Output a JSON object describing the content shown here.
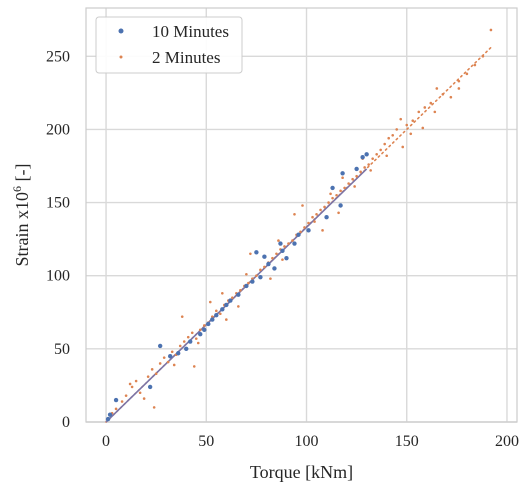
{
  "chart_data": {
    "type": "scatter",
    "xlabel": "Torque [kNm]",
    "ylabel_main": "Strain x10",
    "ylabel_sup": "6",
    "ylabel_tail": " [-]",
    "xlim": [
      -10,
      205
    ],
    "ylim": [
      0,
      283
    ],
    "x_ticks": [
      0,
      50,
      100,
      150,
      200
    ],
    "y_ticks": [
      0,
      50,
      100,
      150,
      200,
      250
    ],
    "x_tick_labels": [
      "0",
      "50",
      "100",
      "150",
      "200"
    ],
    "y_tick_labels": [
      "0",
      "50",
      "100",
      "150",
      "200",
      "250"
    ],
    "grid": true,
    "legend_position": "top-left",
    "series": [
      {
        "name": "10 Minutes",
        "color": "#4C72B0",
        "marker": "dot",
        "points": [
          [
            1,
            2
          ],
          [
            2,
            5
          ],
          [
            5,
            15
          ],
          [
            22,
            24
          ],
          [
            27,
            52
          ],
          [
            32,
            45
          ],
          [
            36,
            47
          ],
          [
            40,
            50
          ],
          [
            42,
            55
          ],
          [
            47,
            60
          ],
          [
            49,
            63
          ],
          [
            51,
            67
          ],
          [
            53,
            70
          ],
          [
            55,
            73
          ],
          [
            58,
            77
          ],
          [
            60,
            80
          ],
          [
            62,
            83
          ],
          [
            66,
            87
          ],
          [
            70,
            93
          ],
          [
            73,
            96
          ],
          [
            75,
            116
          ],
          [
            77,
            99
          ],
          [
            79,
            113
          ],
          [
            81,
            108
          ],
          [
            84,
            105
          ],
          [
            87,
            122
          ],
          [
            88,
            117
          ],
          [
            90,
            112
          ],
          [
            94,
            122
          ],
          [
            96,
            128
          ],
          [
            101,
            131
          ],
          [
            110,
            140
          ],
          [
            113,
            160
          ],
          [
            117,
            148
          ],
          [
            118,
            170
          ],
          [
            125,
            173
          ],
          [
            128,
            181
          ],
          [
            130,
            183
          ]
        ],
        "fit_line": [
          [
            0,
            0
          ],
          [
            130,
            173
          ]
        ]
      },
      {
        "name": "2 Minutes",
        "color": "#DD8452",
        "marker": "dot",
        "points": [
          [
            1,
            2
          ],
          [
            3,
            6
          ],
          [
            5,
            9
          ],
          [
            8,
            14
          ],
          [
            10,
            18
          ],
          [
            13,
            24
          ],
          [
            15,
            28
          ],
          [
            17,
            20
          ],
          [
            19,
            16
          ],
          [
            21,
            31
          ],
          [
            23,
            36
          ],
          [
            25,
            33
          ],
          [
            27,
            40
          ],
          [
            29,
            44
          ],
          [
            31,
            41
          ],
          [
            33,
            48
          ],
          [
            35,
            46
          ],
          [
            37,
            52
          ],
          [
            39,
            55
          ],
          [
            41,
            58
          ],
          [
            43,
            61
          ],
          [
            45,
            57
          ],
          [
            47,
            63
          ],
          [
            49,
            66
          ],
          [
            51,
            68
          ],
          [
            53,
            72
          ],
          [
            55,
            76
          ],
          [
            57,
            74
          ],
          [
            59,
            80
          ],
          [
            61,
            83
          ],
          [
            63,
            85
          ],
          [
            65,
            88
          ],
          [
            67,
            90
          ],
          [
            69,
            93
          ],
          [
            71,
            95
          ],
          [
            73,
            98
          ],
          [
            75,
            100
          ],
          [
            77,
            104
          ],
          [
            79,
            106
          ],
          [
            81,
            109
          ],
          [
            83,
            112
          ],
          [
            85,
            115
          ],
          [
            87,
            118
          ],
          [
            89,
            120
          ],
          [
            91,
            122
          ],
          [
            93,
            124
          ],
          [
            95,
            128
          ],
          [
            97,
            130
          ],
          [
            99,
            133
          ],
          [
            101,
            136
          ],
          [
            103,
            140
          ],
          [
            105,
            142
          ],
          [
            107,
            145
          ],
          [
            109,
            147
          ],
          [
            111,
            150
          ],
          [
            113,
            153
          ],
          [
            115,
            155
          ],
          [
            117,
            158
          ],
          [
            119,
            160
          ],
          [
            121,
            163
          ],
          [
            123,
            166
          ],
          [
            125,
            168
          ],
          [
            127,
            171
          ],
          [
            129,
            174
          ],
          [
            131,
            176
          ],
          [
            133,
            180
          ],
          [
            135,
            183
          ],
          [
            137,
            186
          ],
          [
            139,
            190
          ],
          [
            141,
            194
          ],
          [
            143,
            196
          ],
          [
            145,
            200
          ],
          [
            147,
            207
          ],
          [
            150,
            203
          ],
          [
            153,
            206
          ],
          [
            156,
            212
          ],
          [
            159,
            215
          ],
          [
            162,
            218
          ],
          [
            165,
            228
          ],
          [
            168,
            224
          ],
          [
            172,
            222
          ],
          [
            176,
            233
          ],
          [
            180,
            238
          ],
          [
            184,
            244
          ],
          [
            188,
            250
          ],
          [
            192,
            268
          ],
          [
            24,
            10
          ],
          [
            44,
            38
          ],
          [
            60,
            70
          ],
          [
            72,
            115
          ],
          [
            86,
            124
          ],
          [
            98,
            148
          ],
          [
            108,
            131
          ],
          [
            118,
            167
          ],
          [
            132,
            172
          ],
          [
            148,
            188
          ],
          [
            158,
            201
          ],
          [
            38,
            72
          ],
          [
            52,
            82
          ],
          [
            66,
            79
          ],
          [
            82,
            98
          ],
          [
            94,
            142
          ],
          [
            112,
            156
          ],
          [
            124,
            161
          ],
          [
            140,
            182
          ],
          [
            12,
            26
          ],
          [
            34,
            39
          ],
          [
            46,
            54
          ],
          [
            58,
            88
          ],
          [
            70,
            101
          ],
          [
            88,
            111
          ],
          [
            104,
            137
          ],
          [
            116,
            143
          ],
          [
            128,
            180
          ],
          [
            152,
            197
          ],
          [
            164,
            212
          ],
          [
            176,
            228
          ]
        ],
        "fit_line": [
          [
            0,
            0
          ],
          [
            192,
            256
          ]
        ]
      }
    ]
  }
}
